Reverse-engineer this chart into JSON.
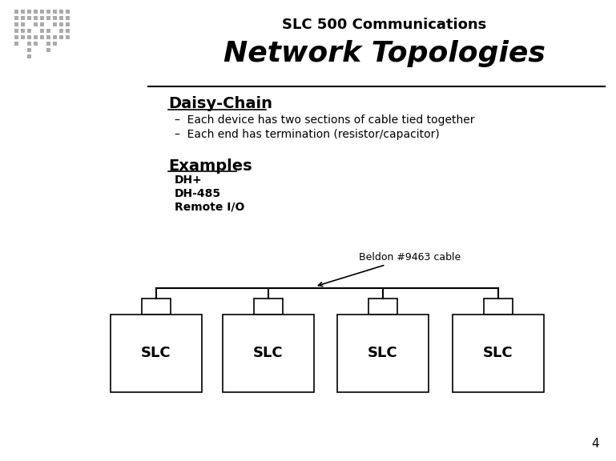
{
  "title_top": "SLC 500 Communications",
  "title_main": "Network Topologies",
  "section_title": "Daisy-Chain",
  "bullets": [
    "Each device has two sections of cable tied together",
    "Each end has termination (resistor/capacitor)"
  ],
  "examples_title": "Examples",
  "examples_list": [
    "DH+",
    "DH-485",
    "Remote I/O"
  ],
  "annotation_text": "Beldon #9463 cable",
  "slc_label": "SLC",
  "num_devices": 4,
  "bg_color": "#ffffff",
  "fg_color": "#000000",
  "page_number": "4",
  "logo_color": "#aaaaaa"
}
